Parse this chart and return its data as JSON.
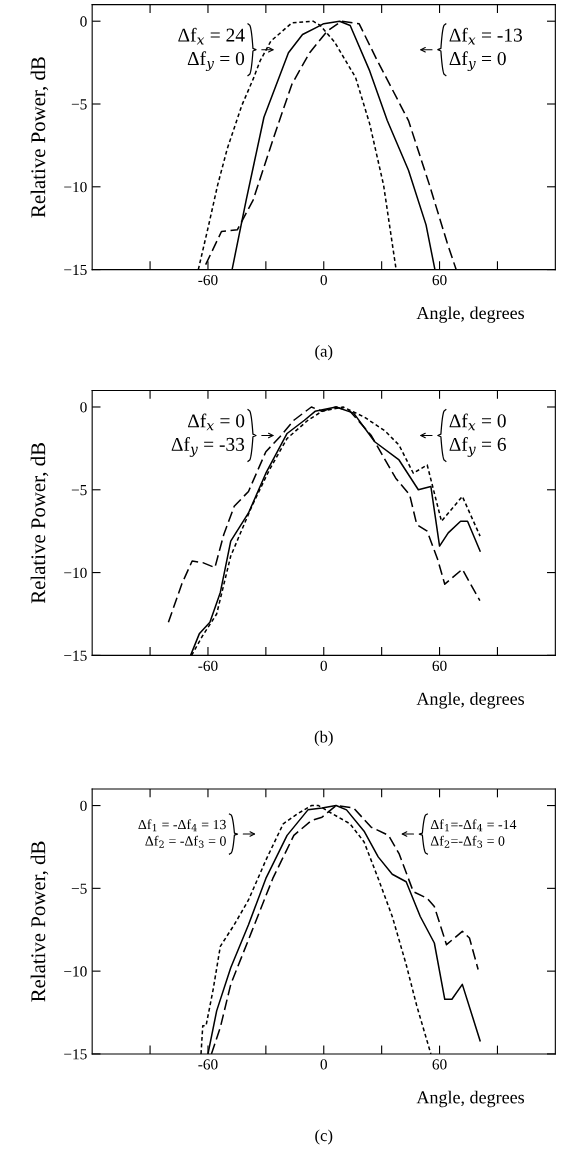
{
  "chart_data": [
    {
      "type": "line",
      "title": "(a)",
      "xlabel": "Angle, degrees",
      "ylabel": "Relative Power, dB",
      "xlim": [
        -120,
        120
      ],
      "ylim": [
        -15,
        1
      ],
      "xticks": [
        {
          "value": -90,
          "label": null
        },
        -60,
        {
          "value": -30,
          "label": null
        },
        0,
        {
          "value": 30,
          "label": null
        },
        60,
        {
          "value": 90,
          "label": null
        }
      ],
      "yticks": [
        {
          "value": -15,
          "label": "−15"
        },
        {
          "value": -10,
          "label": "−10"
        },
        {
          "value": -5,
          "label": "−5"
        },
        0
      ],
      "series": [
        {
          "color": "#000000",
          "line_style": "solid",
          "x": [
            -47.5,
            -40.2,
            -31,
            -18.3,
            -11,
            -3.7,
            0,
            8.2,
            13.7,
            23.8,
            32.9,
            43.9,
            53,
            57.6
          ],
          "values": [
            -15,
            -10.8,
            -5.8,
            -1.9,
            -0.8,
            -0.37,
            -0.15,
            0,
            -0.26,
            -3,
            -6,
            -9,
            -12.3,
            -15
          ]
        },
        {
          "color": "#000000",
          "line_style": "dashed",
          "x": [
            -61.2,
            -53,
            -44.8,
            -36.6,
            -25.6,
            -16.5,
            -7.3,
            1.8,
            9.1,
            18.3,
            27.4,
            43.9,
            54.8,
            64,
            68.6
          ],
          "values": [
            -14.7,
            -12.7,
            -12.6,
            -10.8,
            -6.9,
            -3.8,
            -1.9,
            -0.6,
            0,
            -0.15,
            -2.3,
            -6,
            -9.9,
            -13.4,
            -15
          ]
        },
        {
          "color": "#000000",
          "line_style": "dotted",
          "x": [
            -65,
            -60,
            -55,
            -50,
            -42.5,
            -36.6,
            -33,
            -27.4,
            -16.5,
            -5.5,
            -1.8,
            5.5,
            16.5,
            23.8,
            31,
            36.6,
            37.5
          ],
          "values": [
            -15,
            -12.5,
            -9.9,
            -7.7,
            -5.1,
            -3.5,
            -2.4,
            -1.2,
            -0.1,
            0,
            -0.26,
            -1.24,
            -3.4,
            -6.2,
            -9.9,
            -14.3,
            -15
          ]
        }
      ],
      "annotations": [
        "Δf$_{x}$ = 24\nΔf$_{y}$ = 0",
        "Δf$_{x}$ = -13\nΔf$_{y}$ = 0"
      ]
    },
    {
      "type": "line",
      "title": "(b)",
      "xlabel": "Angle, degrees",
      "ylabel": "Relative Power, dB",
      "xlim": [
        -120,
        120
      ],
      "ylim": [
        -15,
        1
      ],
      "xticks": [
        {
          "value": -90,
          "label": null
        },
        -60,
        {
          "value": -30,
          "label": null
        },
        0,
        {
          "value": 30,
          "label": null
        },
        60,
        {
          "value": 90,
          "label": null
        }
      ],
      "yticks": [
        {
          "value": -15,
          "label": "−15"
        },
        {
          "value": -10,
          "label": "−10"
        },
        {
          "value": -5,
          "label": "−5"
        },
        0
      ],
      "series": [
        {
          "color": "#000000",
          "line_style": "solid",
          "x": [
            -69,
            -64.5,
            -59,
            -53.6,
            -48.2,
            -39,
            -30,
            -19,
            -10,
            -4.5,
            6.4,
            15.5,
            26.4,
            39,
            49,
            55.5,
            60,
            64.5,
            70.9,
            74.5,
            81
          ],
          "values": [
            -15,
            -13.7,
            -13,
            -11.2,
            -8.1,
            -6.4,
            -4,
            -1.6,
            -0.8,
            -0.26,
            0,
            -0.37,
            -2.1,
            -3.2,
            -5,
            -4.8,
            -8.4,
            -7.6,
            -6.9,
            -6.9,
            -8.7
          ]
        },
        {
          "color": "#000000",
          "line_style": "dashed",
          "x": [
            -80.5,
            -73.6,
            -68.2,
            -62.7,
            -56.4,
            -51.8,
            -46.4,
            -39,
            -30,
            -22.7,
            -15.5,
            -6.4,
            -0.9,
            6.4,
            13.6,
            24.5,
            31.8,
            37.3,
            44.5,
            48.2,
            53.6,
            59,
            62.7,
            71.8,
            80.9
          ],
          "values": [
            -13,
            -10.7,
            -9.3,
            -9.4,
            -9.7,
            -7.7,
            -6,
            -5.1,
            -2.7,
            -1.8,
            -0.8,
            0,
            -0.26,
            0,
            -0.26,
            -1.7,
            -3.2,
            -4.3,
            -5.3,
            -7.1,
            -7.5,
            -9.2,
            -10.7,
            -9.8,
            -11.7
          ]
        },
        {
          "color": "#000000",
          "line_style": "dotted",
          "x": [
            -68.5,
            -62.7,
            -55.5,
            -48.2,
            -37.3,
            -28.2,
            -19,
            -8.2,
            -0.9,
            10,
            20.9,
            31.8,
            39,
            46.4,
            53.6,
            61,
            71.8,
            81
          ],
          "values": [
            -15,
            -13.8,
            -12.5,
            -9,
            -6,
            -3.8,
            -1.9,
            -0.8,
            -0.26,
            0,
            -0.6,
            -1.45,
            -2.3,
            -4,
            -3.5,
            -6.9,
            -5.4,
            -7.8
          ]
        }
      ],
      "annotations": [
        "Δf$_{x}$ = 0\nΔf$_{y}$ = -33",
        "Δf$_{x}$ = 0\nΔf$_{y}$ = 6"
      ]
    },
    {
      "type": "line",
      "title": "(c)",
      "xlabel": "Angle, degrees",
      "ylabel": "Relative Power, dB",
      "xlim": [
        -120,
        120
      ],
      "ylim": [
        -15,
        1
      ],
      "xticks": [
        {
          "value": -90,
          "label": null
        },
        -60,
        {
          "value": -30,
          "label": null
        },
        0,
        {
          "value": 30,
          "label": null
        },
        60,
        {
          "value": 90,
          "label": null
        }
      ],
      "yticks": [
        {
          "value": -15,
          "label": "−15"
        },
        {
          "value": -10,
          "label": "−10"
        },
        {
          "value": -5,
          "label": "−5"
        },
        0
      ],
      "series": [
        {
          "color": "#000000",
          "line_style": "solid",
          "x": [
            -60,
            -55.5,
            -48.2,
            -39,
            -30,
            -19,
            -8.2,
            -0.9,
            6.4,
            11.8,
            20.9,
            28.2,
            35.5,
            42.7,
            50,
            57.3,
            62.7,
            66.4,
            71.8,
            81
          ],
          "values": [
            -15,
            -12.4,
            -9.8,
            -7.2,
            -4.4,
            -1.8,
            -0.26,
            -0.15,
            0,
            -0.26,
            -1.55,
            -3.1,
            -4.15,
            -4.6,
            -6.7,
            -8.3,
            -11.7,
            -11.7,
            -10.8,
            -14.2
          ]
        },
        {
          "color": "#000000",
          "line_style": "dashed",
          "x": [
            -58.2,
            -53.6,
            -48.2,
            -37.3,
            -26.4,
            -15.5,
            -6.4,
            -0.9,
            6.4,
            15.5,
            24.5,
            33.6,
            39,
            46.4,
            53.6,
            57.3,
            63.6,
            71.8,
            75.5,
            80
          ],
          "values": [
            -15,
            -13.4,
            -10.8,
            -7.6,
            -4.4,
            -1.8,
            -0.9,
            -0.7,
            0,
            -0.15,
            -1.3,
            -1.8,
            -2.9,
            -5.2,
            -5.6,
            -6.1,
            -8.4,
            -7.6,
            -8,
            -9.9
          ]
        },
        {
          "color": "#000000",
          "line_style": "dotted",
          "x": [
            -63.6,
            -62.7,
            -61,
            -57.3,
            -53.6,
            -46.4,
            -39,
            -30,
            -21,
            -13.6,
            -6.4,
            -2.7,
            4.5,
            13.6,
            20.9,
            28.2,
            35.5,
            42.7,
            48.2,
            55.5
          ],
          "values": [
            -15,
            -13.3,
            -13.3,
            -11.1,
            -8.5,
            -7.2,
            -5.7,
            -3.3,
            -1.1,
            -0.5,
            0,
            0,
            -0.5,
            -1.1,
            -2.2,
            -4.4,
            -6.7,
            -9.6,
            -12.1,
            -15
          ]
        }
      ],
      "annotations": [
        "Δf$_{1}$ = -Δf$_{4}$ = 13\nΔf$_{2}$ = -Δf$_{3}$ = 0",
        "Δf$_{1}$=-Δf$_{4}$ = -14\nΔf$_{2}$=-Δf$_{3}$ = 0"
      ]
    }
  ]
}
